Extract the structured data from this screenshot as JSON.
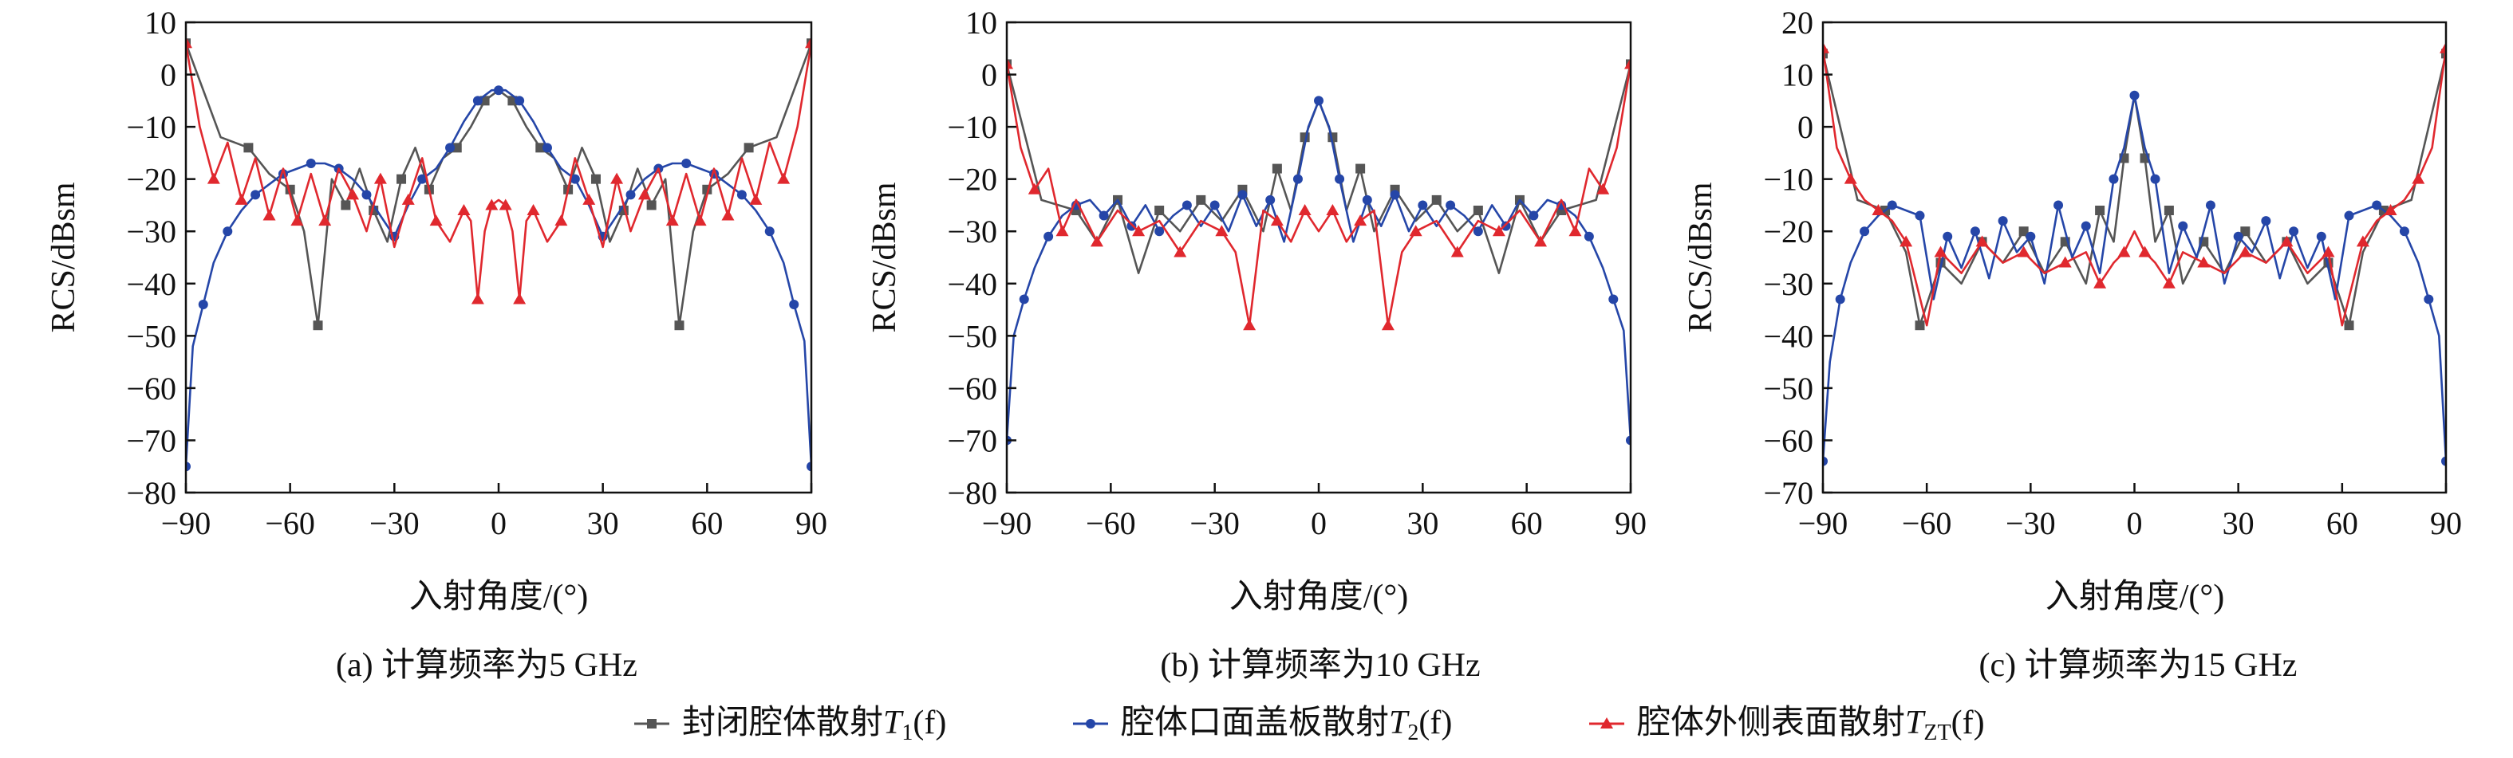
{
  "chart_data": [
    {
      "type": "line",
      "caption": "(a) 计算频率为5 GHz",
      "xlabel": "入射角度/(°)",
      "ylabel": "RCS/dBsm",
      "xlim": [
        -90,
        90
      ],
      "ylim": [
        -80,
        10
      ],
      "xticks": [
        "−90",
        "−60",
        "−30",
        "0",
        "30",
        "60",
        "90"
      ],
      "yticks": [
        "10",
        "0",
        "−10",
        "−20",
        "−30",
        "−40",
        "−50",
        "−60",
        "−70",
        "−80"
      ],
      "series": [
        {
          "key": "T1",
          "color": "#555555",
          "marker": "square",
          "x": [
            -90,
            -80,
            -72,
            -66,
            -60,
            -56,
            -52,
            -48,
            -44,
            -40,
            -36,
            -32,
            -28,
            -24,
            -20,
            -16,
            -12,
            -8,
            -4,
            0,
            4,
            8,
            12,
            16,
            20,
            24,
            28,
            32,
            36,
            40,
            44,
            48,
            52,
            56,
            60,
            66,
            72,
            80,
            90
          ],
          "y": [
            6,
            -12,
            -14,
            -19,
            -22,
            -30,
            -48,
            -20,
            -25,
            -18,
            -26,
            -32,
            -20,
            -14,
            -22,
            -16,
            -14,
            -10,
            -5,
            -3,
            -5,
            -10,
            -14,
            -16,
            -22,
            -14,
            -20,
            -32,
            -26,
            -18,
            -25,
            -20,
            -48,
            -30,
            -22,
            -19,
            -14,
            -12,
            6
          ]
        },
        {
          "key": "T2",
          "color": "#2546a8",
          "marker": "circle",
          "x": [
            -90,
            -88,
            -85,
            -82,
            -78,
            -74,
            -70,
            -66,
            -62,
            -58,
            -54,
            -50,
            -46,
            -42,
            -38,
            -34,
            -30,
            -26,
            -22,
            -18,
            -14,
            -10,
            -6,
            -2,
            0,
            2,
            6,
            10,
            14,
            18,
            22,
            26,
            30,
            34,
            38,
            42,
            46,
            50,
            54,
            58,
            62,
            66,
            70,
            74,
            78,
            82,
            85,
            88,
            90
          ],
          "y": [
            -75,
            -52,
            -44,
            -36,
            -30,
            -26,
            -23,
            -21,
            -19,
            -18,
            -17,
            -17,
            -18,
            -20,
            -23,
            -27,
            -31,
            -25,
            -20,
            -18,
            -14,
            -9,
            -5,
            -3,
            -3,
            -3,
            -5,
            -9,
            -14,
            -18,
            -20,
            -25,
            -31,
            -27,
            -23,
            -20,
            -18,
            -17,
            -17,
            -18,
            -19,
            -21,
            -23,
            -26,
            -30,
            -36,
            -44,
            -51,
            -75
          ]
        },
        {
          "key": "TZT",
          "color": "#e0282e",
          "marker": "triangle",
          "x": [
            -90,
            -86,
            -82,
            -78,
            -74,
            -70,
            -66,
            -62,
            -58,
            -54,
            -50,
            -46,
            -42,
            -38,
            -34,
            -30,
            -26,
            -22,
            -18,
            -14,
            -10,
            -8,
            -6,
            -4,
            -2,
            0,
            2,
            4,
            6,
            8,
            10,
            14,
            18,
            22,
            26,
            30,
            34,
            38,
            42,
            46,
            50,
            54,
            58,
            62,
            66,
            70,
            74,
            78,
            82,
            86,
            90
          ],
          "y": [
            6,
            -10,
            -20,
            -13,
            -24,
            -16,
            -27,
            -18,
            -28,
            -19,
            -28,
            -18,
            -23,
            -30,
            -20,
            -33,
            -24,
            -16,
            -28,
            -32,
            -26,
            -28,
            -43,
            -30,
            -25,
            -24,
            -25,
            -30,
            -43,
            -28,
            -26,
            -32,
            -28,
            -16,
            -24,
            -33,
            -20,
            -30,
            -23,
            -18,
            -28,
            -19,
            -28,
            -18,
            -27,
            -16,
            -24,
            -13,
            -20,
            -10,
            6
          ]
        }
      ]
    },
    {
      "type": "line",
      "caption": "(b) 计算频率为10 GHz",
      "xlabel": "入射角度/(°)",
      "ylabel": "RCS/dBsm",
      "xlim": [
        -90,
        90
      ],
      "ylim": [
        -80,
        10
      ],
      "xticks": [
        "−90",
        "−60",
        "−30",
        "0",
        "30",
        "60",
        "90"
      ],
      "yticks": [
        "10",
        "0",
        "−10",
        "−20",
        "−30",
        "−40",
        "−50",
        "−60",
        "−70",
        "−80"
      ],
      "series": [
        {
          "key": "T1",
          "color": "#555555",
          "marker": "square",
          "x": [
            -90,
            -80,
            -70,
            -64,
            -58,
            -52,
            -46,
            -40,
            -34,
            -28,
            -22,
            -16,
            -12,
            -8,
            -4,
            0,
            4,
            8,
            12,
            16,
            22,
            28,
            34,
            40,
            46,
            52,
            58,
            64,
            70,
            80,
            90
          ],
          "y": [
            2,
            -24,
            -26,
            -32,
            -24,
            -38,
            -26,
            -30,
            -24,
            -28,
            -22,
            -30,
            -18,
            -26,
            -12,
            -5,
            -12,
            -26,
            -18,
            -30,
            -22,
            -28,
            -24,
            -30,
            -26,
            -38,
            -24,
            -32,
            -26,
            -24,
            2
          ]
        },
        {
          "key": "T2",
          "color": "#2546a8",
          "marker": "circle",
          "x": [
            -90,
            -88,
            -85,
            -82,
            -78,
            -74,
            -70,
            -66,
            -62,
            -58,
            -54,
            -50,
            -46,
            -42,
            -38,
            -34,
            -30,
            -26,
            -22,
            -18,
            -14,
            -10,
            -6,
            -3,
            0,
            3,
            6,
            10,
            14,
            18,
            22,
            26,
            30,
            34,
            38,
            42,
            46,
            50,
            54,
            58,
            62,
            66,
            70,
            74,
            78,
            82,
            85,
            88,
            90
          ],
          "y": [
            -70,
            -50,
            -43,
            -37,
            -31,
            -27,
            -25,
            -24,
            -27,
            -24,
            -29,
            -25,
            -30,
            -27,
            -25,
            -29,
            -25,
            -30,
            -23,
            -29,
            -24,
            -32,
            -20,
            -10,
            -5,
            -10,
            -20,
            -32,
            -24,
            -29,
            -23,
            -30,
            -25,
            -29,
            -25,
            -27,
            -30,
            -25,
            -29,
            -24,
            -27,
            -24,
            -25,
            -27,
            -31,
            -37,
            -43,
            -49,
            -70
          ]
        },
        {
          "key": "TZT",
          "color": "#e0282e",
          "marker": "triangle",
          "x": [
            -90,
            -86,
            -82,
            -78,
            -74,
            -70,
            -64,
            -58,
            -52,
            -46,
            -40,
            -34,
            -28,
            -24,
            -20,
            -16,
            -12,
            -8,
            -4,
            0,
            4,
            8,
            12,
            16,
            20,
            24,
            28,
            34,
            40,
            46,
            52,
            58,
            64,
            70,
            74,
            78,
            82,
            86,
            90
          ],
          "y": [
            2,
            -14,
            -22,
            -18,
            -30,
            -24,
            -32,
            -26,
            -30,
            -28,
            -34,
            -28,
            -30,
            -34,
            -48,
            -26,
            -28,
            -32,
            -26,
            -30,
            -26,
            -32,
            -28,
            -26,
            -48,
            -34,
            -30,
            -28,
            -34,
            -28,
            -30,
            -26,
            -32,
            -24,
            -30,
            -18,
            -22,
            -14,
            2
          ]
        }
      ]
    },
    {
      "type": "line",
      "caption": "(c) 计算频率为15 GHz",
      "xlabel": "入射角度/(°)",
      "ylabel": "RCS/dBsm",
      "xlim": [
        -90,
        90
      ],
      "ylim": [
        -70,
        20
      ],
      "xticks": [
        "−90",
        "−60",
        "−30",
        "0",
        "30",
        "60",
        "90"
      ],
      "yticks": [
        "20",
        "10",
        "0",
        "−10",
        "−20",
        "−30",
        "−40",
        "−50",
        "−60",
        "−70"
      ],
      "series": [
        {
          "key": "T1",
          "color": "#555555",
          "marker": "square",
          "x": [
            -90,
            -80,
            -72,
            -66,
            -62,
            -60,
            -56,
            -50,
            -44,
            -38,
            -32,
            -26,
            -20,
            -14,
            -10,
            -6,
            -3,
            0,
            3,
            6,
            10,
            14,
            20,
            26,
            32,
            38,
            44,
            50,
            56,
            60,
            62,
            66,
            72,
            80,
            90
          ],
          "y": [
            14,
            -14,
            -16,
            -24,
            -38,
            -34,
            -26,
            -30,
            -22,
            -26,
            -20,
            -28,
            -22,
            -30,
            -16,
            -22,
            -6,
            6,
            -6,
            -22,
            -16,
            -30,
            -22,
            -28,
            -20,
            -26,
            -22,
            -30,
            -26,
            -34,
            -38,
            -24,
            -16,
            -14,
            14
          ]
        },
        {
          "key": "T2",
          "color": "#2546a8",
          "marker": "circle",
          "x": [
            -90,
            -88,
            -85,
            -82,
            -78,
            -74,
            -70,
            -66,
            -62,
            -58,
            -54,
            -50,
            -46,
            -42,
            -38,
            -34,
            -30,
            -26,
            -22,
            -18,
            -14,
            -10,
            -6,
            -3,
            0,
            3,
            6,
            10,
            14,
            18,
            22,
            26,
            30,
            34,
            38,
            42,
            46,
            50,
            54,
            58,
            62,
            66,
            70,
            74,
            78,
            82,
            85,
            88,
            90
          ],
          "y": [
            -64,
            -45,
            -33,
            -26,
            -20,
            -17,
            -15,
            -16,
            -17,
            -33,
            -21,
            -27,
            -20,
            -29,
            -18,
            -24,
            -21,
            -30,
            -15,
            -25,
            -19,
            -28,
            -10,
            -4,
            6,
            -4,
            -10,
            -28,
            -19,
            -25,
            -15,
            -30,
            -21,
            -24,
            -18,
            -29,
            -20,
            -27,
            -21,
            -33,
            -17,
            -16,
            -15,
            -17,
            -20,
            -26,
            -33,
            -40,
            -64
          ]
        },
        {
          "key": "TZT",
          "color": "#e0282e",
          "marker": "triangle",
          "x": [
            -90,
            -86,
            -82,
            -78,
            -74,
            -70,
            -66,
            -60,
            -56,
            -50,
            -44,
            -38,
            -32,
            -26,
            -20,
            -14,
            -10,
            -6,
            -3,
            0,
            3,
            6,
            10,
            14,
            20,
            26,
            32,
            38,
            44,
            50,
            56,
            60,
            66,
            70,
            74,
            78,
            82,
            86,
            90
          ],
          "y": [
            15,
            -4,
            -10,
            -14,
            -16,
            -18,
            -22,
            -38,
            -24,
            -28,
            -22,
            -26,
            -24,
            -28,
            -26,
            -24,
            -30,
            -26,
            -24,
            -20,
            -24,
            -26,
            -30,
            -24,
            -26,
            -28,
            -24,
            -26,
            -22,
            -28,
            -24,
            -38,
            -22,
            -18,
            -16,
            -14,
            -10,
            -4,
            15
          ]
        }
      ]
    }
  ],
  "legend": [
    {
      "key": "T1",
      "text": "封闭腔体散射",
      "sym": "T",
      "sub": "1",
      "tail": "(f)"
    },
    {
      "key": "T2",
      "text": "腔体口面盖板散射",
      "sym": "T",
      "sub": "2",
      "tail": "(f)"
    },
    {
      "key": "TZT",
      "text": "腔体外侧表面散射",
      "sym": "T",
      "sub": "ZT",
      "tail": "(f)"
    }
  ]
}
